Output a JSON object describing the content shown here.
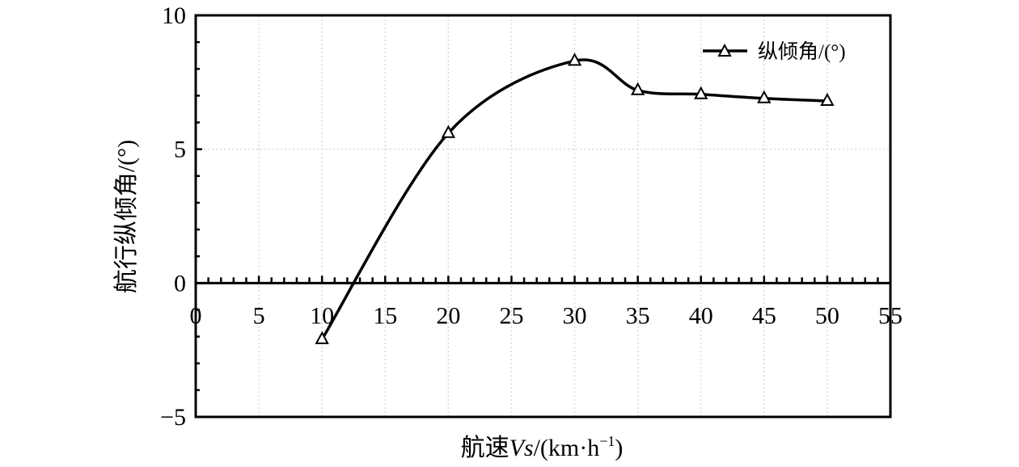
{
  "chart_data": {
    "type": "line",
    "title": "",
    "xlabel": "航速Vs/(km·h⁻¹)",
    "xlabel_parts": {
      "prefix": "航速",
      "italic": "Vs",
      "suffix": "/(km·h",
      "sup": "−1",
      "close": ")"
    },
    "ylabel": "航行纵倾角/(°)",
    "xlim": [
      0,
      55
    ],
    "ylim": [
      -5,
      10
    ],
    "xticks": [
      0,
      5,
      10,
      15,
      20,
      25,
      30,
      35,
      40,
      45,
      50,
      55
    ],
    "xtick_labels": [
      "0",
      "5",
      "10",
      "15",
      "20",
      "25",
      "30",
      "35",
      "40",
      "45",
      "50",
      "55"
    ],
    "yticks": [
      -5,
      0,
      5,
      10
    ],
    "ytick_labels": [
      "−5",
      "0",
      "5",
      "10"
    ],
    "grid": true,
    "legend_position": "top-right",
    "series": [
      {
        "name": "纵倾角/(°)",
        "marker": "triangle-open",
        "color": "#000000",
        "x": [
          10,
          20,
          30,
          35,
          40,
          45,
          50
        ],
        "y": [
          -2.1,
          5.6,
          8.3,
          7.2,
          7.05,
          6.9,
          6.8
        ]
      }
    ]
  }
}
